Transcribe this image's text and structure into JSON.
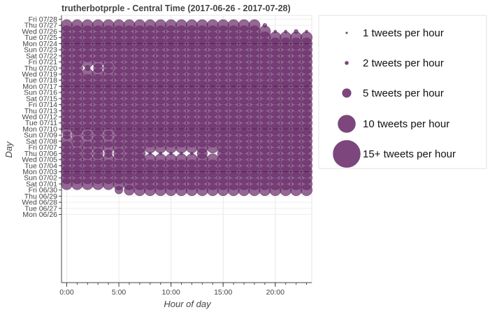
{
  "chart_data": {
    "type": "scatter",
    "title": "trutherbotprple - Central Time (2017-06-26 - 2017-07-28)",
    "xlabel": "Hour of day",
    "ylabel": "Day",
    "xlim": [
      -0.5,
      23.5
    ],
    "x_ticks": [
      "0:00",
      "5:00",
      "10:00",
      "15:00",
      "20:00"
    ],
    "x_tick_values": [
      0,
      5,
      10,
      15,
      20
    ],
    "hours": [
      0,
      1,
      2,
      3,
      4,
      5,
      6,
      7,
      8,
      9,
      10,
      11,
      12,
      13,
      14,
      15,
      16,
      17,
      18,
      19,
      20,
      21,
      22,
      23
    ],
    "days": [
      "Mon 06/26",
      "Tue 06/27",
      "Wed 06/28",
      "Thu 06/29",
      "Fri 06/30",
      "Sat 07/01",
      "Sun 07/02",
      "Mon 07/03",
      "Tue 07/04",
      "Wed 07/05",
      "Thu 07/06",
      "Fri 07/07",
      "Sat 07/08",
      "Sun 07/09",
      "Mon 07/10",
      "Tue 07/11",
      "Wed 07/12",
      "Thu 07/13",
      "Fri 07/14",
      "Sat 07/15",
      "Sun 07/16",
      "Mon 07/17",
      "Tue 07/18",
      "Wed 07/19",
      "Thu 07/20",
      "Fri 07/21",
      "Sat 07/22",
      "Sun 07/23",
      "Mon 07/24",
      "Tue 07/25",
      "Wed 07/26",
      "Thu 07/27",
      "Fri 07/28"
    ],
    "week_lines": [
      "Mon 07/03",
      "Mon 07/10",
      "Mon 07/17",
      "Mon 07/24"
    ],
    "marker_color": "#6b2c6b",
    "grid": true,
    "legend_position": "right",
    "legend": [
      {
        "label": "1 tweets per hour",
        "value": 1
      },
      {
        "label": "2 tweets per hour",
        "value": 2
      },
      {
        "label": "5 tweets per hour",
        "value": 5
      },
      {
        "label": "10 tweets per hour",
        "value": 10
      },
      {
        "label": "15+ tweets per hour",
        "value": 15
      }
    ],
    "counts_by_day": {
      "Mon 06/26": [
        0,
        0,
        0,
        0,
        0,
        0,
        0,
        0,
        0,
        0,
        0,
        0,
        0,
        0,
        0,
        0,
        0,
        0,
        0,
        0,
        0,
        0,
        0,
        0
      ],
      "Tue 06/27": [
        0,
        0,
        0,
        0,
        0,
        0,
        0,
        0,
        0,
        0,
        0,
        0,
        0,
        0,
        0,
        0,
        0,
        0,
        0,
        0,
        0,
        0,
        0,
        0
      ],
      "Wed 06/28": [
        0,
        0,
        0,
        0,
        0,
        0,
        0,
        0,
        0,
        0,
        0,
        0,
        0,
        0,
        0,
        0,
        0,
        0,
        0,
        0,
        0,
        0,
        0,
        0
      ],
      "Thu 06/29": [
        0,
        0,
        0,
        0,
        0,
        0,
        0,
        0,
        0,
        0,
        0,
        0,
        0,
        0,
        0,
        0,
        0,
        0,
        0,
        0,
        0,
        0,
        0,
        0
      ],
      "Fri 06/30": [
        0,
        0,
        0,
        0,
        0,
        5,
        7,
        8,
        9,
        9,
        9,
        9,
        8,
        9,
        9,
        9,
        9,
        8,
        9,
        9,
        8,
        9,
        9,
        8
      ],
      "Sat 07/01": [
        9,
        9,
        9,
        9,
        9,
        9,
        9,
        9,
        9,
        9,
        9,
        9,
        9,
        9,
        9,
        9,
        9,
        9,
        9,
        9,
        9,
        9,
        9,
        9
      ],
      "Sun 07/02": [
        9,
        8,
        9,
        9,
        8,
        9,
        9,
        8,
        9,
        9,
        9,
        8,
        9,
        9,
        9,
        8,
        9,
        9,
        9,
        9,
        9,
        8,
        9,
        9
      ],
      "Mon 07/03": [
        8,
        9,
        9,
        9,
        8,
        9,
        9,
        9,
        9,
        9,
        9,
        9,
        9,
        9,
        9,
        9,
        9,
        9,
        9,
        9,
        9,
        9,
        9,
        9
      ],
      "Tue 07/04": [
        8,
        8,
        8,
        9,
        8,
        9,
        9,
        8,
        9,
        8,
        9,
        9,
        8,
        9,
        8,
        9,
        9,
        8,
        9,
        9,
        9,
        8,
        9,
        8
      ],
      "Wed 07/05": [
        8,
        9,
        8,
        9,
        8,
        9,
        9,
        8,
        9,
        9,
        9,
        9,
        8,
        9,
        9,
        8,
        9,
        9,
        9,
        8,
        9,
        9,
        9,
        8
      ],
      "Thu 07/06": [
        8,
        8,
        7,
        7,
        5,
        7,
        8,
        8,
        1,
        1,
        1,
        1,
        1,
        7,
        0,
        8,
        9,
        8,
        9,
        8,
        9,
        8,
        9,
        8
      ],
      "Fri 07/07": [
        8,
        8,
        8,
        8,
        8,
        8,
        8,
        8,
        8,
        8,
        8,
        8,
        8,
        8,
        8,
        8,
        8,
        8,
        8,
        8,
        8,
        8,
        8,
        8
      ],
      "Sat 07/08": [
        8,
        7,
        8,
        8,
        8,
        8,
        8,
        8,
        8,
        8,
        8,
        8,
        8,
        8,
        8,
        8,
        8,
        8,
        8,
        8,
        8,
        8,
        8,
        8
      ],
      "Sun 07/09": [
        5,
        8,
        6,
        8,
        6,
        8,
        8,
        8,
        8,
        8,
        8,
        8,
        8,
        8,
        8,
        8,
        8,
        8,
        8,
        8,
        8,
        8,
        8,
        8
      ],
      "Mon 07/10": [
        8,
        8,
        8,
        8,
        8,
        8,
        8,
        8,
        8,
        8,
        8,
        8,
        8,
        8,
        8,
        8,
        8,
        8,
        8,
        8,
        8,
        8,
        8,
        8
      ],
      "Tue 07/11": [
        8,
        8,
        8,
        8,
        8,
        8,
        8,
        8,
        8,
        8,
        8,
        8,
        8,
        8,
        8,
        8,
        8,
        8,
        8,
        8,
        8,
        8,
        8,
        8
      ],
      "Wed 07/12": [
        8,
        8,
        8,
        8,
        8,
        8,
        8,
        8,
        8,
        8,
        8,
        8,
        8,
        8,
        8,
        8,
        8,
        8,
        8,
        8,
        8,
        8,
        8,
        8
      ],
      "Thu 07/13": [
        8,
        8,
        8,
        8,
        8,
        8,
        8,
        8,
        8,
        8,
        8,
        8,
        8,
        8,
        8,
        8,
        8,
        8,
        8,
        8,
        8,
        8,
        8,
        8
      ],
      "Fri 07/14": [
        8,
        8,
        8,
        8,
        8,
        8,
        8,
        8,
        8,
        8,
        8,
        8,
        8,
        8,
        8,
        8,
        8,
        8,
        8,
        8,
        8,
        8,
        8,
        8
      ],
      "Sat 07/15": [
        8,
        8,
        8,
        8,
        8,
        8,
        8,
        8,
        8,
        8,
        8,
        8,
        8,
        8,
        8,
        8,
        8,
        8,
        8,
        8,
        8,
        8,
        8,
        8
      ],
      "Sun 07/16": [
        8,
        8,
        8,
        8,
        8,
        8,
        8,
        8,
        8,
        8,
        8,
        8,
        8,
        8,
        8,
        8,
        8,
        8,
        8,
        8,
        8,
        8,
        8,
        8
      ],
      "Mon 07/17": [
        8,
        8,
        8,
        8,
        8,
        8,
        8,
        8,
        8,
        8,
        8,
        8,
        8,
        8,
        8,
        8,
        8,
        8,
        8,
        8,
        8,
        8,
        8,
        8
      ],
      "Tue 07/18": [
        8,
        8,
        8,
        8,
        8,
        8,
        8,
        8,
        8,
        8,
        8,
        8,
        8,
        8,
        8,
        8,
        8,
        8,
        8,
        8,
        8,
        8,
        8,
        8
      ],
      "Wed 07/19": [
        8,
        8,
        8,
        8,
        8,
        8,
        8,
        8,
        8,
        8,
        8,
        8,
        8,
        8,
        8,
        8,
        8,
        8,
        8,
        8,
        8,
        8,
        8,
        8
      ],
      "Thu 07/20": [
        8,
        8,
        3,
        6,
        7,
        8,
        8,
        8,
        8,
        8,
        8,
        8,
        8,
        8,
        8,
        8,
        8,
        8,
        8,
        8,
        8,
        8,
        8,
        8
      ],
      "Fri 07/21": [
        8,
        8,
        8,
        8,
        8,
        8,
        8,
        8,
        8,
        8,
        8,
        8,
        8,
        8,
        8,
        8,
        8,
        8,
        8,
        8,
        8,
        8,
        8,
        8
      ],
      "Sat 07/22": [
        8,
        8,
        8,
        8,
        8,
        8,
        8,
        8,
        8,
        8,
        8,
        8,
        8,
        8,
        8,
        8,
        8,
        8,
        8,
        8,
        8,
        8,
        8,
        8
      ],
      "Sun 07/23": [
        8,
        8,
        8,
        8,
        8,
        8,
        8,
        8,
        8,
        8,
        8,
        8,
        8,
        8,
        8,
        8,
        8,
        8,
        8,
        8,
        8,
        8,
        8,
        8
      ],
      "Mon 07/24": [
        8,
        8,
        8,
        8,
        8,
        8,
        8,
        8,
        8,
        8,
        8,
        8,
        8,
        8,
        8,
        8,
        8,
        8,
        8,
        8,
        8,
        8,
        8,
        8
      ],
      "Tue 07/25": [
        8,
        8,
        8,
        8,
        8,
        8,
        8,
        8,
        8,
        8,
        8,
        8,
        8,
        8,
        8,
        8,
        8,
        8,
        8,
        8,
        8,
        8,
        8,
        10
      ],
      "Wed 07/26": [
        8,
        8,
        8,
        8,
        8,
        8,
        8,
        8,
        8,
        8,
        8,
        8,
        8,
        8,
        8,
        8,
        8,
        8,
        8,
        8,
        1,
        1,
        2,
        1
      ],
      "Thu 07/27": [
        8,
        8,
        8,
        8,
        8,
        8,
        8,
        8,
        9,
        8,
        8,
        8,
        9,
        8,
        8,
        8,
        8,
        8,
        8,
        2,
        0,
        0,
        0,
        0
      ],
      "Fri 07/28": [
        0,
        0,
        0,
        0,
        0,
        0,
        0,
        0,
        0,
        0,
        0,
        0,
        0,
        0,
        0,
        0,
        0,
        0,
        0,
        0,
        0,
        0,
        0,
        0
      ]
    }
  }
}
